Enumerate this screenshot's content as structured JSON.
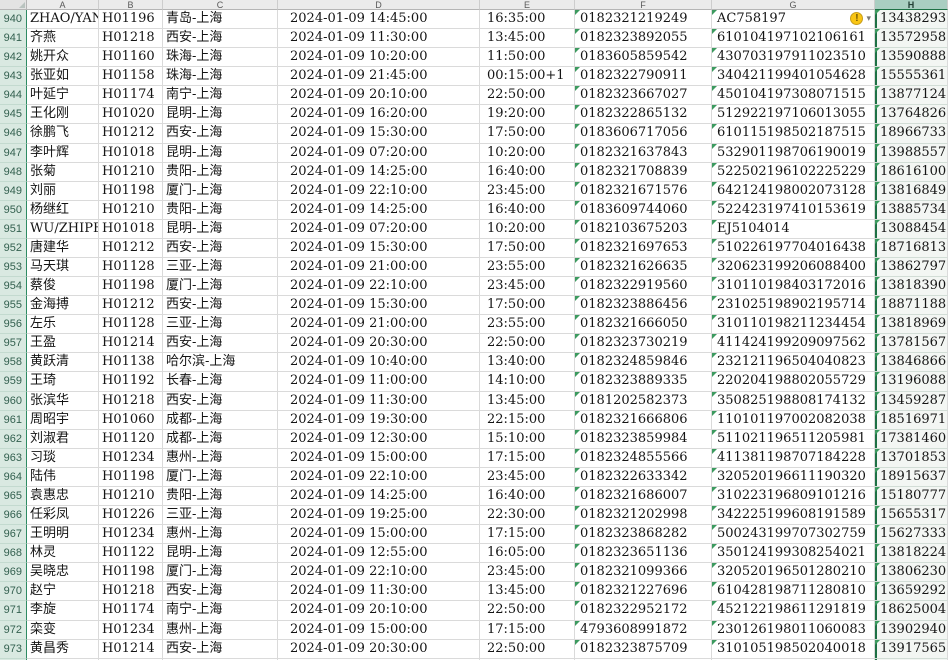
{
  "sheet": {
    "column_letters": [
      "A",
      "B",
      "C",
      "D",
      "E",
      "F",
      "G",
      "H"
    ],
    "selected_column": "H",
    "smart_tag": {
      "row": 940,
      "icon": "warning-icon",
      "glyph": "!",
      "caret": "▾"
    },
    "colors": {
      "selection_green": "#1e7145",
      "row_header_bg": "#d9e9e1",
      "selected_header_bg": "#a9cec1",
      "grid_line": "#dadada",
      "error_triangle": "#3c9a5f",
      "smart_tag_yellow": "#f9c513"
    },
    "rows": [
      {
        "row": 940,
        "name": "ZHAO/YAN",
        "flight": "H01196",
        "route": "青岛-上海",
        "departure": "2024-01-09 14:45:00",
        "arrival": "16:35:00",
        "ticket_no": "0182321219249",
        "id_no": "AC758197",
        "phone": "13438293"
      },
      {
        "row": 941,
        "name": "齐燕",
        "flight": "H01218",
        "route": "西安-上海",
        "departure": "2024-01-09 11:30:00",
        "arrival": "13:45:00",
        "ticket_no": "0182323892055",
        "id_no": "610104197102106161",
        "phone": "13572958"
      },
      {
        "row": 942,
        "name": "姚开众",
        "flight": "H01160",
        "route": "珠海-上海",
        "departure": "2024-01-09 10:20:00",
        "arrival": "11:50:00",
        "ticket_no": "0183605859542",
        "id_no": "430703197911023510",
        "phone": "13590888"
      },
      {
        "row": 943,
        "name": "张亚如",
        "flight": "H01158",
        "route": "珠海-上海",
        "departure": "2024-01-09 21:45:00",
        "arrival": "00:15:00+1",
        "ticket_no": "0182322790911",
        "id_no": "340421199401054628",
        "phone": "15555361"
      },
      {
        "row": 944,
        "name": "叶延宁",
        "flight": "H01174",
        "route": "南宁-上海",
        "departure": "2024-01-09 20:10:00",
        "arrival": "22:50:00",
        "ticket_no": "0182323667027",
        "id_no": "450104197308071515",
        "phone": "13877124"
      },
      {
        "row": 945,
        "name": "王化刚",
        "flight": "H01020",
        "route": "昆明-上海",
        "departure": "2024-01-09 16:20:00",
        "arrival": "19:20:00",
        "ticket_no": "0182322865132",
        "id_no": "512922197106013055",
        "phone": "13764826"
      },
      {
        "row": 946,
        "name": "徐鹏飞",
        "flight": "H01212",
        "route": "西安-上海",
        "departure": "2024-01-09 15:30:00",
        "arrival": "17:50:00",
        "ticket_no": "0183606717056",
        "id_no": "610115198502187515",
        "phone": "18966733"
      },
      {
        "row": 947,
        "name": "李叶辉",
        "flight": "H01018",
        "route": "昆明-上海",
        "departure": "2024-01-09 07:20:00",
        "arrival": "10:20:00",
        "ticket_no": "0182321637843",
        "id_no": "532901198706190019",
        "phone": "13988557"
      },
      {
        "row": 948,
        "name": "张菊",
        "flight": "H01210",
        "route": "贵阳-上海",
        "departure": "2024-01-09 14:25:00",
        "arrival": "16:40:00",
        "ticket_no": "0182321708839",
        "id_no": "522502196102225229",
        "phone": "18616100"
      },
      {
        "row": 949,
        "name": "刘丽",
        "flight": "H01198",
        "route": "厦门-上海",
        "departure": "2024-01-09 22:10:00",
        "arrival": "23:45:00",
        "ticket_no": "0182321671576",
        "id_no": "642124198002073128",
        "phone": "13816849"
      },
      {
        "row": 950,
        "name": "杨继红",
        "flight": "H01210",
        "route": "贵阳-上海",
        "departure": "2024-01-09 14:25:00",
        "arrival": "16:40:00",
        "ticket_no": "0183609744060",
        "id_no": "522423197410153619",
        "phone": "13885734"
      },
      {
        "row": 951,
        "name": "WU/ZHIPEN",
        "flight": "H01018",
        "route": "昆明-上海",
        "departure": "2024-01-09 07:20:00",
        "arrival": "10:20:00",
        "ticket_no": "0182103675203",
        "id_no": "EJ5104014",
        "phone": "13088454"
      },
      {
        "row": 952,
        "name": "唐建华",
        "flight": "H01212",
        "route": "西安-上海",
        "departure": "2024-01-09 15:30:00",
        "arrival": "17:50:00",
        "ticket_no": "0182321697653",
        "id_no": "510226197704016438",
        "phone": "18716813"
      },
      {
        "row": 953,
        "name": "马天琪",
        "flight": "H01128",
        "route": "三亚-上海",
        "departure": "2024-01-09 21:00:00",
        "arrival": "23:55:00",
        "ticket_no": "0182321626635",
        "id_no": "320623199206088400",
        "phone": "13862797"
      },
      {
        "row": 954,
        "name": "蔡俊",
        "flight": "H01198",
        "route": "厦门-上海",
        "departure": "2024-01-09 22:10:00",
        "arrival": "23:45:00",
        "ticket_no": "0182322919560",
        "id_no": "310110198403172016",
        "phone": "13818390"
      },
      {
        "row": 955,
        "name": "金海搏",
        "flight": "H01212",
        "route": "西安-上海",
        "departure": "2024-01-09 15:30:00",
        "arrival": "17:50:00",
        "ticket_no": "0182323886456",
        "id_no": "231025198902195714",
        "phone": "18871188"
      },
      {
        "row": 956,
        "name": "左乐",
        "flight": "H01128",
        "route": "三亚-上海",
        "departure": "2024-01-09 21:00:00",
        "arrival": "23:55:00",
        "ticket_no": "0182321666050",
        "id_no": "310110198211234454",
        "phone": "13818969"
      },
      {
        "row": 957,
        "name": "王盈",
        "flight": "H01214",
        "route": "西安-上海",
        "departure": "2024-01-09 20:30:00",
        "arrival": "22:50:00",
        "ticket_no": "0182323730219",
        "id_no": "411424199209097562",
        "phone": "13781567"
      },
      {
        "row": 958,
        "name": "黄跃清",
        "flight": "H01138",
        "route": "哈尔滨-上海",
        "departure": "2024-01-09 10:40:00",
        "arrival": "13:40:00",
        "ticket_no": "0182324859846",
        "id_no": "232121196504040823",
        "phone": "13846866"
      },
      {
        "row": 959,
        "name": "王琦",
        "flight": "H01192",
        "route": "长春-上海",
        "departure": "2024-01-09 11:00:00",
        "arrival": "14:10:00",
        "ticket_no": "0182323889335",
        "id_no": "220204198802055729",
        "phone": "13196088"
      },
      {
        "row": 960,
        "name": "张滨华",
        "flight": "H01218",
        "route": "西安-上海",
        "departure": "2024-01-09 11:30:00",
        "arrival": "13:45:00",
        "ticket_no": "0181202582373",
        "id_no": "350825198808174132",
        "phone": "13459287"
      },
      {
        "row": 961,
        "name": "周昭宇",
        "flight": "H01060",
        "route": "成都-上海",
        "departure": "2024-01-09 19:30:00",
        "arrival": "22:15:00",
        "ticket_no": "0182321666806",
        "id_no": "110101197002082038",
        "phone": "18516971"
      },
      {
        "row": 962,
        "name": "刘淑君",
        "flight": "H01120",
        "route": "成都-上海",
        "departure": "2024-01-09 12:30:00",
        "arrival": "15:10:00",
        "ticket_no": "0182323859984",
        "id_no": "511021196511205981",
        "phone": "17381460"
      },
      {
        "row": 963,
        "name": "习琰",
        "flight": "H01234",
        "route": "惠州-上海",
        "departure": "2024-01-09 15:00:00",
        "arrival": "17:15:00",
        "ticket_no": "0182324855566",
        "id_no": "411381198707184228",
        "phone": "13701853"
      },
      {
        "row": 964,
        "name": "陆伟",
        "flight": "H01198",
        "route": "厦门-上海",
        "departure": "2024-01-09 22:10:00",
        "arrival": "23:45:00",
        "ticket_no": "0182322633342",
        "id_no": "320520196611190320",
        "phone": "18915637"
      },
      {
        "row": 965,
        "name": "袁惠忠",
        "flight": "H01210",
        "route": "贵阳-上海",
        "departure": "2024-01-09 14:25:00",
        "arrival": "16:40:00",
        "ticket_no": "0182321686007",
        "id_no": "310223196809101216",
        "phone": "15180777"
      },
      {
        "row": 966,
        "name": "任彩凤",
        "flight": "H01226",
        "route": "三亚-上海",
        "departure": "2024-01-09 19:25:00",
        "arrival": "22:30:00",
        "ticket_no": "0182321202998",
        "id_no": "342225199608191589",
        "phone": "15655317"
      },
      {
        "row": 967,
        "name": "王明明",
        "flight": "H01234",
        "route": "惠州-上海",
        "departure": "2024-01-09 15:00:00",
        "arrival": "17:15:00",
        "ticket_no": "0182323868282",
        "id_no": "500243199707302759",
        "phone": "15627333"
      },
      {
        "row": 968,
        "name": "林灵",
        "flight": "H01122",
        "route": "昆明-上海",
        "departure": "2024-01-09 12:55:00",
        "arrival": "16:05:00",
        "ticket_no": "0182323651136",
        "id_no": "350124199308254021",
        "phone": "13818224"
      },
      {
        "row": 969,
        "name": "吴晓忠",
        "flight": "H01198",
        "route": "厦门-上海",
        "departure": "2024-01-09 22:10:00",
        "arrival": "23:45:00",
        "ticket_no": "0182321099366",
        "id_no": "320520196501280210",
        "phone": "13806230"
      },
      {
        "row": 970,
        "name": "赵宁",
        "flight": "H01218",
        "route": "西安-上海",
        "departure": "2024-01-09 11:30:00",
        "arrival": "13:45:00",
        "ticket_no": "0182321227696",
        "id_no": "610428198711280810",
        "phone": "13659292"
      },
      {
        "row": 971,
        "name": "李旋",
        "flight": "H01174",
        "route": "南宁-上海",
        "departure": "2024-01-09 20:10:00",
        "arrival": "22:50:00",
        "ticket_no": "0182322952172",
        "id_no": "452122198611291819",
        "phone": "18625004"
      },
      {
        "row": 972,
        "name": "栾变",
        "flight": "H01234",
        "route": "惠州-上海",
        "departure": "2024-01-09 15:00:00",
        "arrival": "17:15:00",
        "ticket_no": "4793608991872",
        "id_no": "230126198011060083",
        "phone": "13902940"
      },
      {
        "row": 973,
        "name": "黄昌秀",
        "flight": "H01214",
        "route": "西安-上海",
        "departure": "2024-01-09 20:30:00",
        "arrival": "22:50:00",
        "ticket_no": "0182323875709",
        "id_no": "310105198502040018",
        "phone": "13917565"
      }
    ]
  }
}
